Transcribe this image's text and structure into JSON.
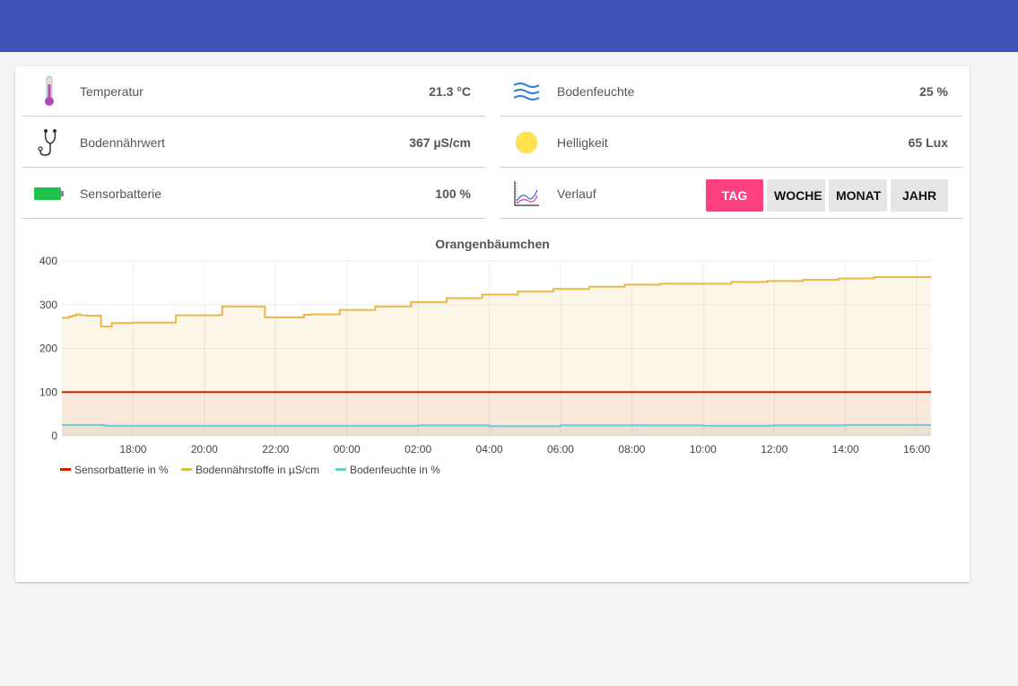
{
  "header": {},
  "rows_left": [
    {
      "name": "temperatur",
      "icon": "thermometer-icon",
      "label": "Temperatur",
      "value": "21.3 °C"
    },
    {
      "name": "bodennaehrwert",
      "icon": "stethoscope-icon",
      "label": "Bodennährwert",
      "value": "367 µS/cm"
    },
    {
      "name": "sensorbatterie",
      "icon": "battery-icon",
      "label": "Sensorbatterie",
      "value": "100 %"
    }
  ],
  "rows_right": [
    {
      "name": "bodenfeuchte",
      "icon": "waves-icon",
      "label": "Bodenfeuchte",
      "value": "25 %"
    },
    {
      "name": "helligkeit",
      "icon": "sun-icon",
      "label": "Helligkeit",
      "value": "65 Lux"
    },
    {
      "name": "verlauf",
      "icon": "line-chart-icon",
      "label": "Verlauf"
    }
  ],
  "range_buttons": [
    {
      "label": "TAG",
      "active": true
    },
    {
      "label": "WOCHE",
      "active": false
    },
    {
      "label": "MONAT",
      "active": false
    },
    {
      "label": "JAHR",
      "active": false
    }
  ],
  "colors": {
    "header": "#3f51b5",
    "accent": "#ff4081",
    "sensorbatterie": "#cc2200",
    "bodennaehrstoffe": "#e8b84a",
    "bodenfeuchte": "#6ccbd8",
    "battery": "#1fc24a",
    "sun": "#ffe24d"
  },
  "chart_data": {
    "type": "line",
    "title": "Orangenbäumchen",
    "ylim": [
      0,
      400
    ],
    "yticks": [
      0,
      100,
      200,
      300,
      400
    ],
    "xlim": [
      16.0,
      40.4
    ],
    "xticks": [
      18,
      20,
      22,
      24,
      26,
      28,
      30,
      32,
      34,
      36,
      38,
      40
    ],
    "xtick_labels": [
      "18:00",
      "20:00",
      "22:00",
      "00:00",
      "02:00",
      "04:00",
      "06:00",
      "08:00",
      "10:00",
      "12:00",
      "14:00",
      "16:00"
    ],
    "grid": true,
    "legend": "bottom-left",
    "series": [
      {
        "name": "Sensorbatterie in %",
        "color": "#cc2200",
        "fill": false,
        "x": [
          16.0,
          40.4
        ],
        "y": [
          100,
          100
        ]
      },
      {
        "name": "Bodennährstoffe in µS/cm",
        "color": "#e8b84a",
        "fill": true,
        "x": [
          16.0,
          16.2,
          16.3,
          16.4,
          16.5,
          16.6,
          16.7,
          17.0,
          17.1,
          17.3,
          17.4,
          18.0,
          18.5,
          19.2,
          19.5,
          20.0,
          20.5,
          20.7,
          21.7,
          22.0,
          22.8,
          23.0,
          23.8,
          24.0,
          24.8,
          25.0,
          25.8,
          26.0,
          26.8,
          27.0,
          27.8,
          28.0,
          28.8,
          29.0,
          29.8,
          30.0,
          30.8,
          31.0,
          31.8,
          32.0,
          32.8,
          33.0,
          33.8,
          34.0,
          34.8,
          35.0,
          35.8,
          36.0,
          36.8,
          37.0,
          37.8,
          38.0,
          38.8,
          40.4
        ],
        "y": [
          270,
          273,
          275,
          278,
          276,
          276,
          275,
          275,
          250,
          250,
          258,
          259,
          259,
          276,
          276,
          276,
          296,
          296,
          271,
          271,
          277,
          278,
          288,
          288,
          296,
          296,
          306,
          306,
          315,
          315,
          323,
          323,
          330,
          330,
          336,
          336,
          341,
          341,
          346,
          346,
          348,
          348,
          348,
          348,
          352,
          352,
          354,
          354,
          357,
          357,
          360,
          360,
          363,
          363
        ]
      },
      {
        "name": "Bodenfeuchte in %",
        "color": "#6ccbd8",
        "fill": true,
        "x": [
          16.0,
          17.0,
          17.2,
          24.0,
          26.0,
          28.0,
          30.0,
          32.0,
          34.0,
          36.0,
          38.0,
          40.4
        ],
        "y": [
          25,
          25,
          23,
          23,
          24,
          22,
          24,
          24,
          23,
          24,
          25,
          25
        ]
      }
    ]
  }
}
